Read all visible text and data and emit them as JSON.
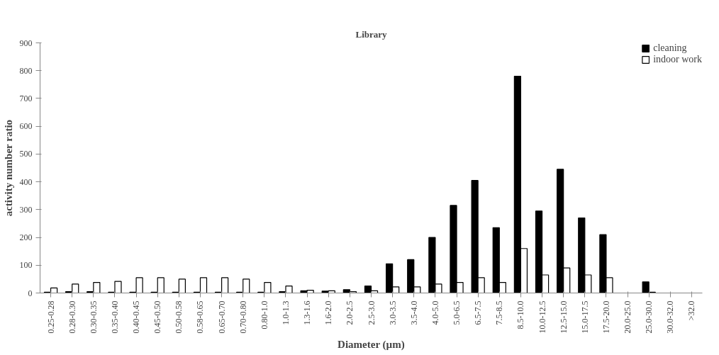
{
  "chart_data": {
    "type": "bar",
    "title": "Library",
    "xlabel": "Diameter (µm)",
    "ylabel": "activity number ratio",
    "categories": [
      "0.25-0.28",
      "0.28-0.30",
      "0.30-0.35",
      "0.35-0.40",
      "0.40-0.45",
      "0.45-0.50",
      "0.50-0.58",
      "0.58-0.65",
      "0.65-0.70",
      "0.70-0.80",
      "0.80-1.0",
      "1.0-1.3",
      "1.3-1.6",
      "1.6-2.0",
      "2.0-2.5",
      "2.5-3.0",
      "3.0-3.5",
      "3.5-4.0",
      "4.0-5.0",
      "5.0-6.5",
      "6.5-7.5",
      "7.5-8.5",
      "8.5-10.0",
      "10.0-12.5",
      "12.5-15.0",
      "15.0-17.5",
      "17.5-20.0",
      "20.0-25.0",
      "25.0-30.0",
      "30.0-32.0",
      ">32.0"
    ],
    "series": [
      {
        "name": "cleaning",
        "color": "#000000",
        "values": [
          3,
          5,
          5,
          3,
          3,
          3,
          3,
          3,
          3,
          3,
          3,
          5,
          8,
          7,
          12,
          25,
          105,
          120,
          200,
          315,
          405,
          235,
          780,
          295,
          445,
          270,
          210,
          null,
          40,
          null,
          null
        ]
      },
      {
        "name": "indoor work",
        "color": "#ffffff",
        "values": [
          18,
          32,
          38,
          42,
          55,
          55,
          50,
          55,
          55,
          50,
          38,
          25,
          10,
          8,
          5,
          8,
          22,
          22,
          32,
          38,
          55,
          38,
          160,
          65,
          90,
          65,
          55,
          null,
          3,
          null,
          null
        ]
      }
    ],
    "ylim": [
      0,
      900
    ],
    "yticks": [
      0,
      100,
      200,
      300,
      400,
      500,
      600,
      700,
      800,
      900
    ],
    "grid": false,
    "legend": "top right"
  }
}
